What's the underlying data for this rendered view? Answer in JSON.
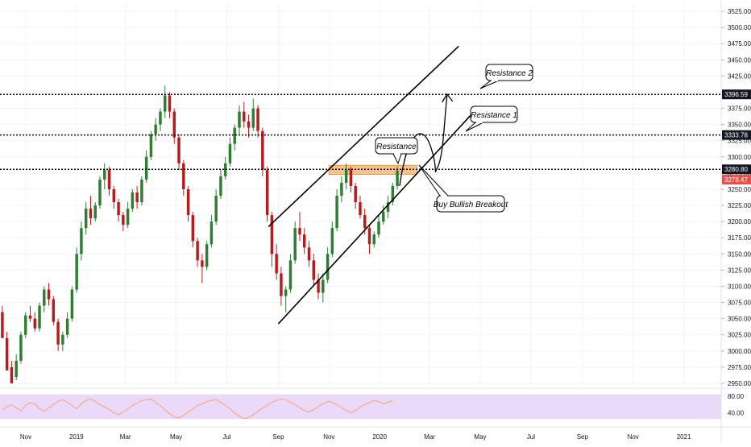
{
  "chart_data": {
    "type": "candlestick",
    "title": "",
    "y_axis": {
      "ticks": [
        "3525.00",
        "3500.00",
        "3475.00",
        "3450.00",
        "3425.00",
        "3400.00",
        "3375.00",
        "3350.00",
        "3325.00",
        "3300.00",
        "3275.00",
        "3250.00",
        "3225.00",
        "3200.00",
        "3175.00",
        "3150.00",
        "3125.00",
        "3100.00",
        "3075.00",
        "3050.00",
        "3025.00",
        "3000.00",
        "2975.00",
        "2950.00"
      ],
      "range": [
        2945,
        3535
      ]
    },
    "x_axis": {
      "ticks": [
        "Nov",
        "2019",
        "Mar",
        "May",
        "Jul",
        "Sep",
        "Nov",
        "2020",
        "Mar",
        "May",
        "Jul",
        "Sep",
        "Nov",
        "2021"
      ],
      "start_date": "2018-10-01",
      "end_date": "2021-02-15"
    },
    "price_levels": [
      {
        "value": 3396.59,
        "label": "3396.59"
      },
      {
        "value": 3333.78,
        "label": "3333.78"
      },
      {
        "value": 3280.8,
        "label": "3280.80"
      }
    ],
    "last_price": {
      "value": 3278.47,
      "label": "3278.47"
    },
    "resistance_zone": {
      "from": 3273,
      "to": 3287,
      "start": "2019-11-01",
      "end": "2020-02-15"
    },
    "channel": {
      "upper": [
        [
          "2019-08-20",
          3192
        ],
        [
          "2020-04-05",
          3471
        ]
      ],
      "lower": [
        [
          "2019-09-01",
          3042
        ],
        [
          "2020-04-20",
          3365
        ]
      ]
    },
    "annotations": [
      {
        "text": "Resistance 2"
      },
      {
        "text": "Resistance 1"
      },
      {
        "text": "Resistance"
      },
      {
        "text": "Buy Bullish Breakout"
      }
    ],
    "rsi": {
      "ticks": [
        "80.00",
        "40.00"
      ],
      "band": [
        30,
        70
      ]
    },
    "colors": {
      "up": "#26a69a",
      "down": "#ef5350",
      "candle_up": "#2e7d32",
      "candle_down": "#b71c1c",
      "zone": "#f5b87a",
      "rsi_band": "#ead9f7",
      "rsi_line": "#f4a37b",
      "last_price_bg": "#e0544e",
      "level_bg": "#131722"
    },
    "series": [
      {
        "values": [
          [
            3060,
            3070,
            3040,
            3020
          ],
          [
            3020,
            3030,
            2990,
            2970
          ],
          [
            2975,
            2985,
            2960,
            2950
          ],
          [
            2960,
            2995,
            2955,
            2985
          ],
          [
            2985,
            3030,
            2980,
            3025
          ],
          [
            3025,
            3060,
            3020,
            3055
          ],
          [
            3055,
            3070,
            3045,
            3050
          ],
          [
            3050,
            3060,
            3030,
            3035
          ],
          [
            3035,
            3075,
            3030,
            3070
          ],
          [
            3070,
            3100,
            3060,
            3095
          ],
          [
            3095,
            3105,
            3070,
            3080
          ],
          [
            3080,
            3085,
            3040,
            3045
          ],
          [
            3045,
            3050,
            3000,
            3010
          ],
          [
            3010,
            3030,
            3000,
            3025
          ],
          [
            3025,
            3060,
            3020,
            3050
          ],
          [
            3050,
            3100,
            3045,
            3095
          ],
          [
            3095,
            3160,
            3090,
            3150
          ],
          [
            3150,
            3200,
            3140,
            3190
          ],
          [
            3190,
            3230,
            3180,
            3220
          ],
          [
            3220,
            3240,
            3195,
            3205
          ],
          [
            3205,
            3230,
            3200,
            3225
          ],
          [
            3225,
            3270,
            3220,
            3265
          ],
          [
            3265,
            3290,
            3250,
            3280
          ],
          [
            3280,
            3285,
            3240,
            3250
          ],
          [
            3250,
            3255,
            3220,
            3230
          ],
          [
            3230,
            3235,
            3200,
            3210
          ],
          [
            3210,
            3215,
            3185,
            3195
          ],
          [
            3195,
            3230,
            3190,
            3220
          ],
          [
            3220,
            3250,
            3215,
            3245
          ],
          [
            3245,
            3255,
            3220,
            3230
          ],
          [
            3230,
            3270,
            3225,
            3265
          ],
          [
            3265,
            3310,
            3260,
            3300
          ],
          [
            3300,
            3340,
            3295,
            3335
          ],
          [
            3335,
            3360,
            3325,
            3350
          ],
          [
            3350,
            3375,
            3340,
            3370
          ],
          [
            3370,
            3410,
            3360,
            3395
          ],
          [
            3395,
            3400,
            3360,
            3370
          ],
          [
            3370,
            3375,
            3320,
            3330
          ],
          [
            3330,
            3335,
            3280,
            3290
          ],
          [
            3290,
            3295,
            3240,
            3250
          ],
          [
            3250,
            3255,
            3200,
            3210
          ],
          [
            3210,
            3215,
            3160,
            3170
          ],
          [
            3170,
            3175,
            3130,
            3140
          ],
          [
            3140,
            3150,
            3105,
            3130
          ],
          [
            3130,
            3170,
            3125,
            3165
          ],
          [
            3165,
            3210,
            3160,
            3200
          ],
          [
            3200,
            3250,
            3195,
            3240
          ],
          [
            3240,
            3280,
            3235,
            3270
          ],
          [
            3270,
            3300,
            3265,
            3290
          ],
          [
            3290,
            3330,
            3285,
            3320
          ],
          [
            3320,
            3350,
            3310,
            3345
          ],
          [
            3345,
            3380,
            3335,
            3370
          ],
          [
            3370,
            3385,
            3345,
            3355
          ],
          [
            3355,
            3365,
            3330,
            3345
          ],
          [
            3345,
            3390,
            3340,
            3375
          ],
          [
            3375,
            3380,
            3330,
            3340
          ],
          [
            3340,
            3345,
            3270,
            3280
          ],
          [
            3280,
            3285,
            3200,
            3210
          ],
          [
            3210,
            3215,
            3130,
            3150
          ],
          [
            3150,
            3165,
            3110,
            3120
          ],
          [
            3120,
            3130,
            3070,
            3085
          ],
          [
            3085,
            3100,
            3060,
            3095
          ],
          [
            3095,
            3150,
            3090,
            3140
          ],
          [
            3140,
            3200,
            3135,
            3190
          ],
          [
            3190,
            3215,
            3170,
            3180
          ],
          [
            3180,
            3190,
            3150,
            3160
          ],
          [
            3160,
            3170,
            3130,
            3140
          ],
          [
            3140,
            3150,
            3100,
            3110
          ],
          [
            3110,
            3120,
            3080,
            3090
          ],
          [
            3090,
            3120,
            3075,
            3110
          ],
          [
            3110,
            3160,
            3105,
            3150
          ],
          [
            3150,
            3200,
            3145,
            3190
          ],
          [
            3190,
            3250,
            3185,
            3240
          ],
          [
            3240,
            3270,
            3230,
            3260
          ],
          [
            3260,
            3290,
            3250,
            3280
          ],
          [
            3280,
            3285,
            3245,
            3255
          ],
          [
            3255,
            3260,
            3220,
            3230
          ],
          [
            3230,
            3240,
            3205,
            3210
          ],
          [
            3210,
            3220,
            3180,
            3190
          ],
          [
            3190,
            3195,
            3150,
            3165
          ],
          [
            3165,
            3185,
            3160,
            3180
          ],
          [
            3180,
            3210,
            3175,
            3200
          ],
          [
            3200,
            3225,
            3195,
            3215
          ],
          [
            3215,
            3240,
            3205,
            3230
          ],
          [
            3230,
            3260,
            3225,
            3255
          ],
          [
            3255,
            3285,
            3250,
            3279
          ]
        ]
      }
    ]
  }
}
